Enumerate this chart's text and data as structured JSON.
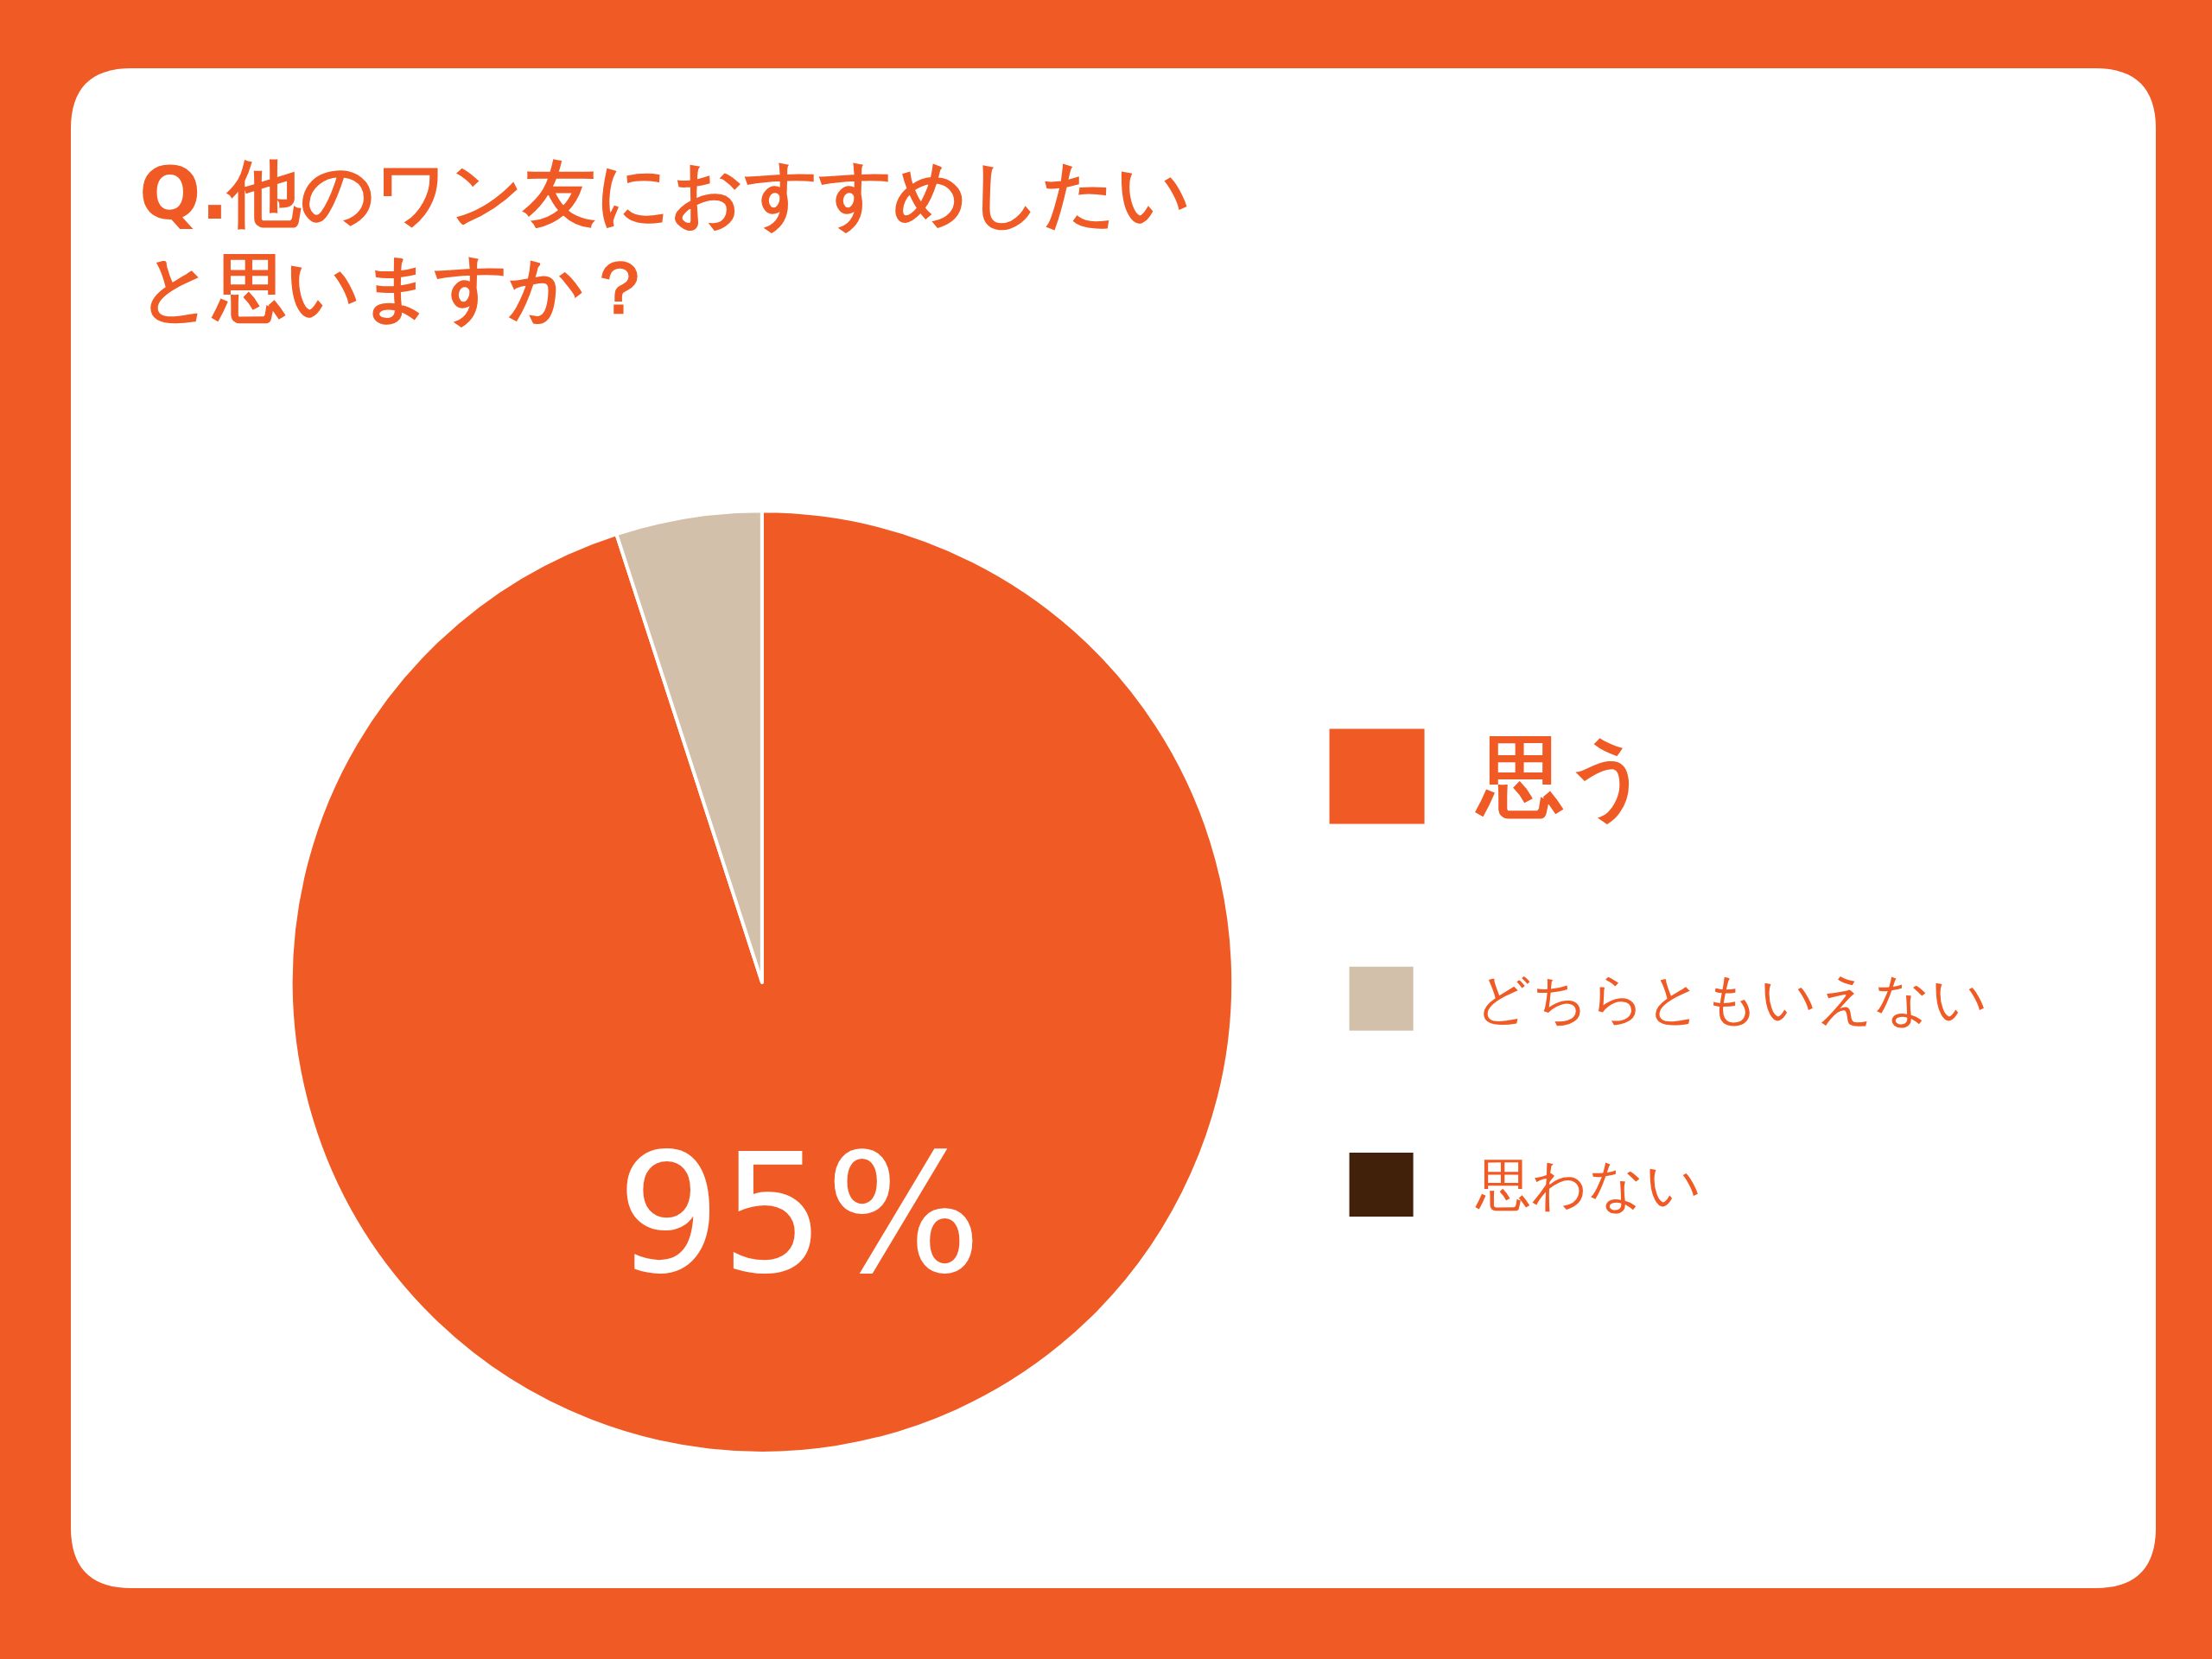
{
  "chart_data": {
    "type": "pie",
    "title": "Q.他のワン友におすすめしたいと思いますか？",
    "categories": [
      "思う",
      "どちらともいえない",
      "思わない"
    ],
    "values": [
      95,
      5,
      0
    ],
    "colors": [
      "#f05a24",
      "#d3c0ab",
      "#42210b"
    ],
    "value_labels": [
      "95%",
      null,
      null
    ],
    "legend": "right"
  }
}
